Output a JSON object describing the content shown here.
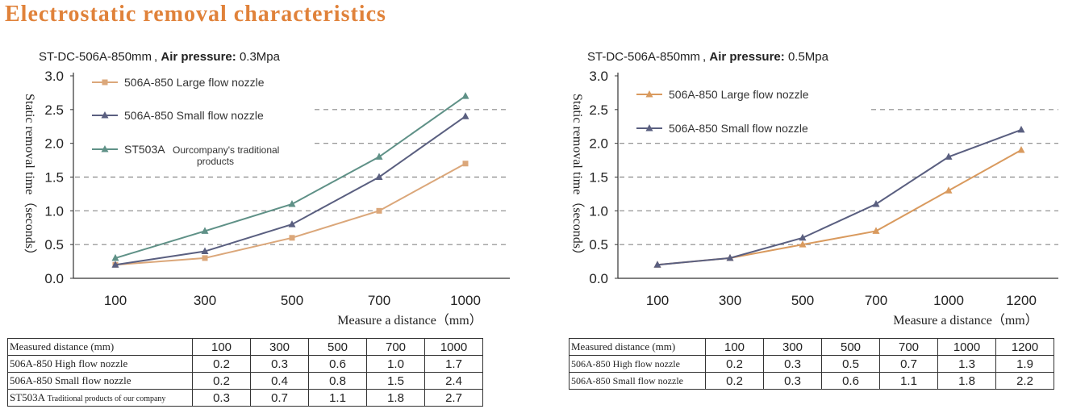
{
  "page_title": "Electrostatic removal characteristics",
  "colors": {
    "title": "#e0823a",
    "large": "#dba77a",
    "small": "#5a5f80",
    "traditional": "#5f9187",
    "grid": "#888888"
  },
  "chart_data": [
    {
      "type": "line",
      "title_model": "ST-DC-506A-850mm ,",
      "title_pressure_label": "Air pressure:",
      "title_pressure_value": "0.3Mpa",
      "xlabel": "Measure a distance（mm）",
      "ylabel": "Static removal time（seconds）",
      "ylim": [
        0,
        3.0
      ],
      "yticks": [
        "0.0",
        "0.5",
        "1.0",
        "1.5",
        "2.0",
        "2.5",
        "3.0"
      ],
      "categories": [
        "100",
        "300",
        "500",
        "700",
        "1000"
      ],
      "series": [
        {
          "name": "506A-850  Large flow nozzle",
          "marker": "square",
          "color": "#dba77a",
          "values": [
            0.2,
            0.3,
            0.6,
            1.0,
            1.7
          ]
        },
        {
          "name": "506A-850  Small flow nozzle",
          "marker": "triangle",
          "color": "#5a5f80",
          "values": [
            0.2,
            0.4,
            0.8,
            1.5,
            2.4
          ]
        },
        {
          "name": "ST503A",
          "name_extra1": "Ourcompany's traditional",
          "name_extra2": "products",
          "marker": "triangle",
          "color": "#5f9187",
          "values": [
            0.3,
            0.7,
            1.1,
            1.8,
            2.7
          ]
        }
      ],
      "table": {
        "header": "Measured distance (mm)",
        "columns": [
          "100",
          "300",
          "500",
          "700",
          "1000"
        ],
        "rows": [
          {
            "label": "506A-850 High flow nozzle",
            "values": [
              "0.2",
              "0.3",
              "0.6",
              "1.0",
              "1.7"
            ]
          },
          {
            "label": "506A-850 Small flow nozzle",
            "values": [
              "0.2",
              "0.4",
              "0.8",
              "1.5",
              "2.4"
            ]
          },
          {
            "label": "ST503A",
            "label_extra": "Traditional products of our company",
            "values": [
              "0.3",
              "0.7",
              "1.1",
              "1.8",
              "2.7"
            ]
          }
        ]
      }
    },
    {
      "type": "line",
      "title_model": "ST-DC-506A-850mm ,",
      "title_pressure_label": "Air pressure:",
      "title_pressure_value": "0.5Mpa",
      "xlabel": "Measure a distance（mm）",
      "ylabel": "Static removal time（seconds）",
      "ylim": [
        0,
        3.0
      ],
      "yticks": [
        "0.0",
        "0.5",
        "1.0",
        "1.5",
        "2.0",
        "2.5",
        "3.0"
      ],
      "categories": [
        "100",
        "300",
        "500",
        "700",
        "1000",
        "1200"
      ],
      "series": [
        {
          "name": "506A-850  Large flow nozzle",
          "marker": "triangle",
          "color": "#d99a5e",
          "values": [
            0.2,
            0.3,
            0.5,
            0.7,
            1.3,
            1.9
          ]
        },
        {
          "name": "506A-850  Small flow nozzle",
          "marker": "triangle",
          "color": "#5a5f80",
          "values": [
            0.2,
            0.3,
            0.6,
            1.1,
            1.8,
            2.2
          ]
        }
      ],
      "table": {
        "header": "Measured distance (mm)",
        "columns": [
          "100",
          "300",
          "500",
          "700",
          "1000",
          "1200"
        ],
        "rows": [
          {
            "label": "506A-850 High flow nozzle",
            "values": [
              "0.2",
              "0.3",
              "0.5",
              "0.7",
              "1.3",
              "1.9"
            ]
          },
          {
            "label": "506A-850 Small flow nozzle",
            "values": [
              "0.2",
              "0.3",
              "0.6",
              "1.1",
              "1.8",
              "2.2"
            ]
          }
        ]
      }
    }
  ]
}
